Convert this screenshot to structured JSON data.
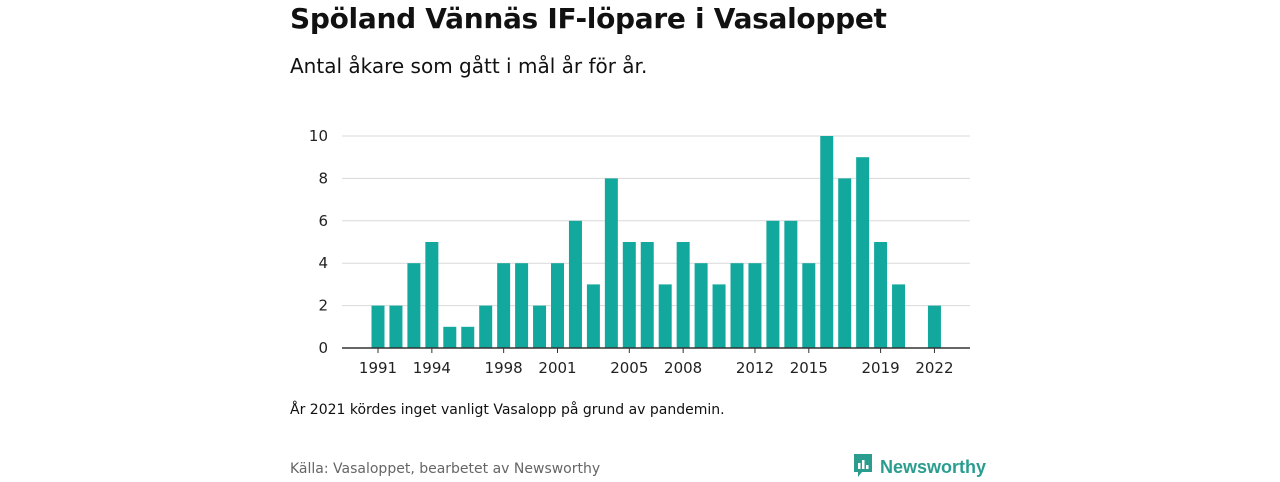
{
  "title": "Spöland Vännäs IF-löpare i Vasaloppet",
  "subtitle": "Antal åkare som gått i mål år för år.",
  "note": "År 2021 kördes inget vanligt Vasalopp på grund av pandemin.",
  "source": "Källa: Vasaloppet, bearbetet av Newsworthy",
  "brand": {
    "name": "Newsworthy",
    "icon": "newsworthy-logo-icon"
  },
  "colors": {
    "bar": "#13a89e",
    "grid": "#d9d9d9",
    "axis": "#333333",
    "brand": "#2a9d8f"
  },
  "chart_data": {
    "type": "bar",
    "title": "Spöland Vännäs IF-löpare i Vasaloppet",
    "subtitle": "Antal åkare som gått i mål år för år.",
    "xlabel": "",
    "ylabel": "",
    "ylim": [
      0,
      10
    ],
    "yticks": [
      0,
      2,
      4,
      6,
      8,
      10
    ],
    "xticks": [
      1991,
      1994,
      1998,
      2001,
      2005,
      2008,
      2012,
      2015,
      2019,
      2022
    ],
    "categories": [
      1991,
      1992,
      1993,
      1994,
      1995,
      1996,
      1997,
      1998,
      1999,
      2000,
      2001,
      2002,
      2003,
      2004,
      2005,
      2006,
      2007,
      2008,
      2009,
      2010,
      2011,
      2012,
      2013,
      2014,
      2015,
      2016,
      2017,
      2018,
      2019,
      2020,
      2021,
      2022
    ],
    "values": [
      2,
      2,
      4,
      5,
      1,
      1,
      2,
      4,
      4,
      2,
      4,
      6,
      3,
      8,
      5,
      5,
      3,
      5,
      4,
      3,
      4,
      4,
      6,
      6,
      4,
      10,
      8,
      9,
      5,
      3,
      0,
      2
    ],
    "grid": true,
    "legend": "none"
  }
}
